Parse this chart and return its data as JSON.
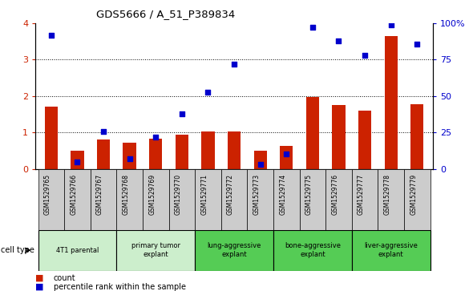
{
  "title": "GDS5666 / A_51_P389834",
  "samples": [
    "GSM1529765",
    "GSM1529766",
    "GSM1529767",
    "GSM1529768",
    "GSM1529769",
    "GSM1529770",
    "GSM1529771",
    "GSM1529772",
    "GSM1529773",
    "GSM1529774",
    "GSM1529775",
    "GSM1529776",
    "GSM1529777",
    "GSM1529778",
    "GSM1529779"
  ],
  "counts": [
    1.7,
    0.5,
    0.8,
    0.72,
    0.82,
    0.93,
    1.02,
    1.02,
    0.5,
    0.62,
    1.97,
    1.75,
    1.6,
    3.65,
    1.78
  ],
  "percentile_ranks": [
    3.68,
    0.18,
    1.02,
    0.28,
    0.88,
    1.5,
    2.1,
    2.88,
    0.12,
    0.4,
    3.88,
    3.52,
    3.12,
    3.95,
    3.42
  ],
  "bar_color": "#cc2200",
  "dot_color": "#0000cc",
  "ylim": [
    0,
    4
  ],
  "yticks_left": [
    0,
    1,
    2,
    3,
    4
  ],
  "yticklabels_right": [
    "0",
    "25",
    "50",
    "75",
    "100%"
  ],
  "group_boundaries": [
    {
      "label": "4T1 parental",
      "start": 0,
      "end": 2,
      "color": "#cceecc"
    },
    {
      "label": "primary tumor\nexplant",
      "start": 3,
      "end": 5,
      "color": "#cceecc"
    },
    {
      "label": "lung-aggressive\nexplant",
      "start": 6,
      "end": 8,
      "color": "#55cc55"
    },
    {
      "label": "bone-aggressive\nexplant",
      "start": 9,
      "end": 11,
      "color": "#55cc55"
    },
    {
      "label": "liver-aggressive\nexplant",
      "start": 12,
      "end": 14,
      "color": "#55cc55"
    }
  ],
  "legend_count_label": "count",
  "legend_percentile_label": "percentile rank within the sample",
  "cell_type_label": "cell type",
  "tick_color_left": "#cc2200",
  "tick_color_right": "#0000cc",
  "sample_box_color": "#cccccc"
}
